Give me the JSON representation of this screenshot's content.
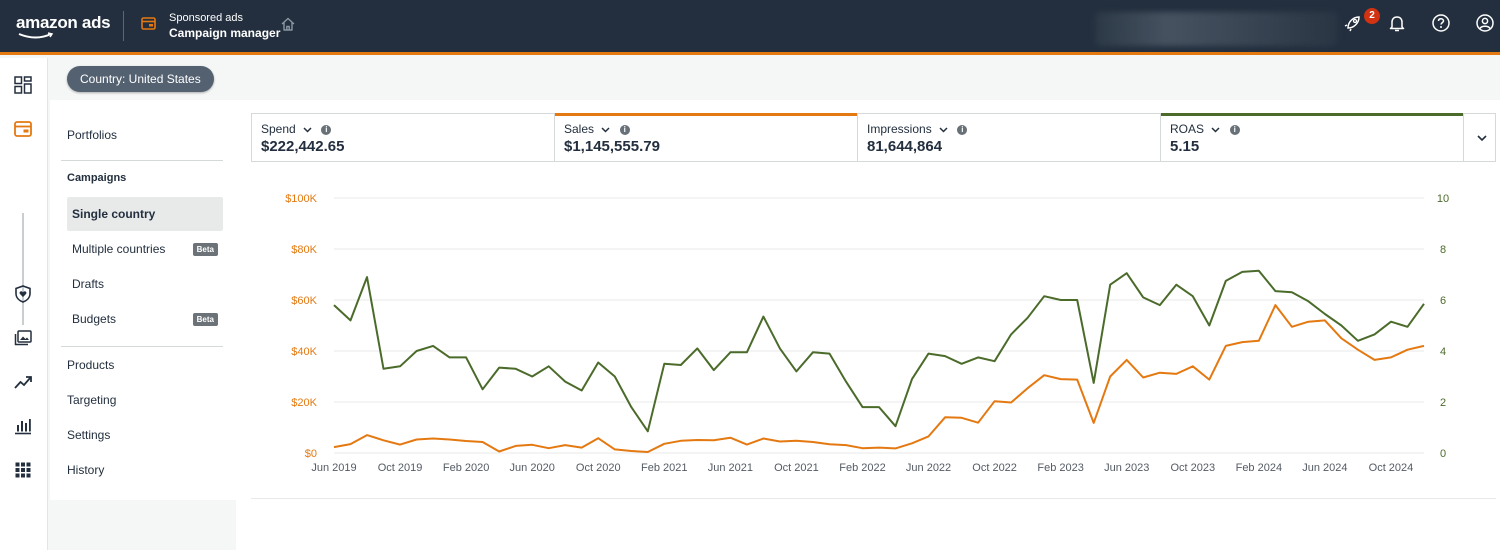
{
  "header": {
    "logo_text": "amazon ads",
    "product_title": "Sponsored ads",
    "product_subtitle": "Campaign manager",
    "notification_count": "2"
  },
  "country_filter": "Country: United States",
  "sidebar": {
    "portfolios": "Portfolios",
    "campaigns": "Campaigns",
    "campaign_items": [
      {
        "label": "Single country",
        "active": true,
        "badge": ""
      },
      {
        "label": "Multiple countries",
        "active": false,
        "badge": "Beta"
      },
      {
        "label": "Drafts",
        "active": false,
        "badge": ""
      },
      {
        "label": "Budgets",
        "active": false,
        "badge": "Beta"
      }
    ],
    "products": "Products",
    "targeting": "Targeting",
    "settings": "Settings",
    "history": "History"
  },
  "metrics": [
    {
      "label": "Spend",
      "value": "$222,442.65",
      "accent": ""
    },
    {
      "label": "Sales",
      "value": "$1,145,555.79",
      "accent": "#e47911"
    },
    {
      "label": "Impressions",
      "value": "81,644,864",
      "accent": ""
    },
    {
      "label": "ROAS",
      "value": "5.15",
      "accent": "#4b6b2a"
    }
  ],
  "colors": {
    "sales": "#e47911",
    "roas": "#4b6b2a",
    "topbar": "#232f3e"
  },
  "chart_data": {
    "type": "line",
    "x": [
      "Jun 2019",
      "Jul 2019",
      "Aug 2019",
      "Sep 2019",
      "Oct 2019",
      "Nov 2019",
      "Dec 2019",
      "Jan 2020",
      "Feb 2020",
      "Mar 2020",
      "Apr 2020",
      "May 2020",
      "Jun 2020",
      "Jul 2020",
      "Aug 2020",
      "Sep 2020",
      "Oct 2020",
      "Nov 2020",
      "Dec 2020",
      "Jan 2021",
      "Feb 2021",
      "Mar 2021",
      "Apr 2021",
      "May 2021",
      "Jun 2021",
      "Jul 2021",
      "Aug 2021",
      "Sep 2021",
      "Oct 2021",
      "Nov 2021",
      "Dec 2021",
      "Jan 2022",
      "Feb 2022",
      "Mar 2022",
      "Apr 2022",
      "May 2022",
      "Jun 2022",
      "Jul 2022",
      "Aug 2022",
      "Sep 2022",
      "Oct 2022",
      "Nov 2022",
      "Dec 2022",
      "Jan 2023",
      "Feb 2023",
      "Mar 2023",
      "Apr 2023",
      "May 2023",
      "Jun 2023",
      "Jul 2023",
      "Aug 2023",
      "Sep 2023",
      "Oct 2023",
      "Nov 2023",
      "Dec 2023",
      "Jan 2024",
      "Feb 2024",
      "Mar 2024",
      "Apr 2024",
      "May 2024",
      "Jun 2024",
      "Jul 2024",
      "Aug 2024",
      "Sep 2024",
      "Oct 2024",
      "Nov 2024",
      "Dec 2024"
    ],
    "x_tick_labels": [
      "Jun 2019",
      "Oct 2019",
      "Feb 2020",
      "Jun 2020",
      "Oct 2020",
      "Feb 2021",
      "Jun 2021",
      "Oct 2021",
      "Feb 2022",
      "Jun 2022",
      "Oct 2022",
      "Feb 2023",
      "Jun 2023",
      "Oct 2023",
      "Feb 2024",
      "Jun 2024",
      "Oct 2024"
    ],
    "y_left_ticks": [
      "$0",
      "$20K",
      "$40K",
      "$60K",
      "$80K",
      "$100K"
    ],
    "y_right_ticks": [
      "0",
      "2",
      "4",
      "6",
      "8",
      "10"
    ],
    "ylim_left": [
      0,
      100000
    ],
    "ylim_right": [
      0,
      10
    ],
    "series": [
      {
        "name": "Sales",
        "axis": "left",
        "color": "#e47911",
        "values": [
          2300,
          3500,
          7000,
          5000,
          3300,
          5300,
          5700,
          5300,
          4700,
          4300,
          600,
          2800,
          3200,
          1900,
          3100,
          2100,
          5800,
          1400,
          800,
          400,
          3600,
          4800,
          5100,
          5000,
          6000,
          3300,
          5700,
          4500,
          4800,
          4300,
          3400,
          3100,
          1900,
          2100,
          1800,
          3800,
          6500,
          14000,
          13800,
          11900,
          20300,
          19800,
          25400,
          30500,
          29000,
          28800,
          11800,
          30000,
          36500,
          29600,
          31500,
          31000,
          34000,
          28800,
          42000,
          43500,
          44000,
          58000,
          49500,
          51500,
          52000,
          45000,
          40500,
          36500,
          37500,
          40500,
          42000
        ]
      },
      {
        "name": "ROAS",
        "axis": "right",
        "color": "#4b6b2a",
        "values": [
          5.8,
          5.2,
          6.9,
          3.3,
          3.4,
          4.0,
          4.2,
          3.75,
          3.75,
          2.5,
          3.35,
          3.3,
          3.0,
          3.4,
          2.8,
          2.45,
          3.55,
          3.0,
          1.8,
          0.85,
          3.5,
          3.45,
          4.1,
          3.25,
          3.95,
          3.95,
          5.35,
          4.1,
          3.2,
          3.95,
          3.9,
          2.8,
          1.8,
          1.8,
          1.05,
          2.9,
          3.9,
          3.8,
          3.5,
          3.75,
          3.6,
          4.65,
          5.3,
          6.15,
          6.0,
          6.0,
          2.75,
          6.6,
          7.05,
          6.1,
          5.8,
          6.6,
          6.15,
          5.0,
          6.75,
          7.1,
          7.15,
          6.35,
          6.3,
          5.95,
          5.45,
          5.0,
          4.4,
          4.65,
          5.15,
          4.95,
          5.85
        ]
      }
    ]
  }
}
